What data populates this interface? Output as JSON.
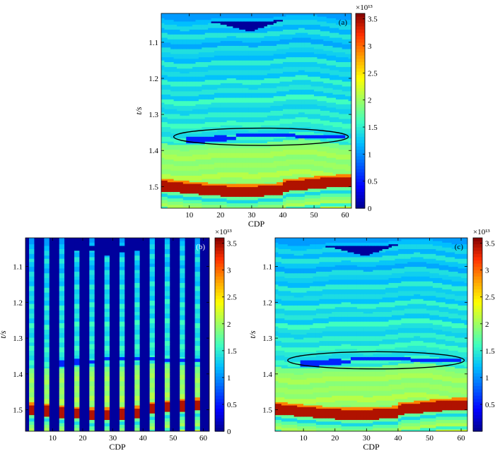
{
  "colormap": [
    "#00008f",
    "#0000ff",
    "#0060ff",
    "#00bfff",
    "#40ffbf",
    "#9fff60",
    "#ffff00",
    "#ff9f00",
    "#ff3000",
    "#800000"
  ],
  "chart_data": [
    {
      "panel": "(a)",
      "type": "heatmap",
      "xlabel": "CDP",
      "ylabel": "t/s",
      "xlim": [
        1,
        62
      ],
      "ylim": [
        1.02,
        1.56
      ],
      "xticks": [
        10,
        20,
        30,
        40,
        50,
        60
      ],
      "yticks": [
        1.1,
        1.2,
        1.3,
        1.4,
        1.5
      ],
      "colorbar": {
        "ticks": [
          0,
          0.5,
          1,
          1.5,
          2,
          2.5,
          3,
          3.5
        ],
        "exponent": "×10¹³",
        "range": [
          0,
          3.6
        ]
      },
      "mask": "none",
      "ellipse": {
        "cx": 33,
        "cy": 1.362,
        "rx": 28,
        "ry": 0.024
      }
    },
    {
      "panel": "(b)",
      "type": "heatmap",
      "xlabel": "CDP",
      "ylabel": "t/s",
      "xlim": [
        1,
        62
      ],
      "ylim": [
        1.02,
        1.56
      ],
      "xticks": [
        10,
        20,
        30,
        40,
        50,
        60
      ],
      "yticks": [
        1.1,
        1.2,
        1.3,
        1.4,
        1.5
      ],
      "colorbar": {
        "ticks": [
          0,
          0.5,
          1,
          1.5,
          2,
          2.5,
          3,
          3.5
        ],
        "exponent": "×10¹³",
        "range": [
          0,
          3.6
        ]
      },
      "mask": "decimated",
      "trace_columns": [
        3,
        8,
        13,
        18,
        23,
        28,
        33,
        38,
        43,
        48,
        53,
        58
      ]
    },
    {
      "panel": "(c)",
      "type": "heatmap",
      "xlabel": "CDP",
      "ylabel": "t/s",
      "xlim": [
        1,
        62
      ],
      "ylim": [
        1.02,
        1.56
      ],
      "xticks": [
        10,
        20,
        30,
        40,
        50,
        60
      ],
      "yticks": [
        1.1,
        1.2,
        1.3,
        1.4,
        1.5
      ],
      "colorbar": {
        "ticks": [
          0.5,
          1,
          1.5,
          2,
          2.5,
          3,
          3.5
        ],
        "exponent": "×10¹³",
        "range": [
          0,
          3.6
        ]
      },
      "mask": "none",
      "ellipse": {
        "cx": 33,
        "cy": 1.362,
        "rx": 28,
        "ry": 0.024
      }
    }
  ]
}
